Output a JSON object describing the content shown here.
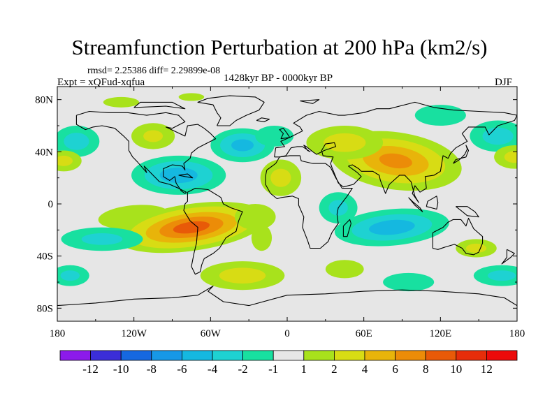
{
  "chart_data": {
    "type": "filled-contour-map",
    "title": "Streamfunction Perturbation at 200 hPa (km2/s)",
    "stats_text": "rmsd= 2.25386 diff= 2.29899e-08",
    "left_label": "Expt = xQFud-xqfua",
    "center_label": "1428kyr BP - 0000kyr BP",
    "right_label": "DJF",
    "x_ticks": [
      "180",
      "120W",
      "60W",
      "0",
      "60E",
      "120E",
      "180"
    ],
    "y_ticks": [
      "80N",
      "40N",
      "0",
      "40S",
      "80S"
    ],
    "lon_range": [
      -180,
      180
    ],
    "lat_range": [
      -90,
      90
    ],
    "colorbar": {
      "labels": [
        "-12",
        "-10",
        "-8",
        "-6",
        "-4",
        "-2",
        "-1",
        "1",
        "2",
        "4",
        "6",
        "8",
        "10",
        "12"
      ],
      "colors": [
        "#8c1aeb",
        "#3b2ed8",
        "#1668e0",
        "#1798e6",
        "#15b8e0",
        "#1ed2d2",
        "#18e0a0",
        "#e6e6e6",
        "#a8e21c",
        "#d8dc14",
        "#e8b40a",
        "#ec8c08",
        "#e85a08",
        "#e62d0a",
        "#ec0a0a"
      ]
    },
    "features": [
      {
        "name": "south-pacific-positive-max",
        "lon": -90,
        "lat": -22,
        "value": 9
      },
      {
        "name": "asia-positive-max",
        "lon": 88,
        "lat": 30,
        "value": 7
      },
      {
        "name": "mid-atlantic-positive",
        "lon": -5,
        "lat": 20,
        "value": 3
      },
      {
        "name": "north-atlantic-negative",
        "lon": -35,
        "lat": 45,
        "value": -4
      },
      {
        "name": "caribbean-negative",
        "lon": -85,
        "lat": 22,
        "value": -4
      },
      {
        "name": "indian-ocean-negative",
        "lon": 80,
        "lat": -18,
        "value": -4
      },
      {
        "name": "southern-ocean-positive",
        "lon": -35,
        "lat": -55,
        "value": 3
      }
    ]
  }
}
